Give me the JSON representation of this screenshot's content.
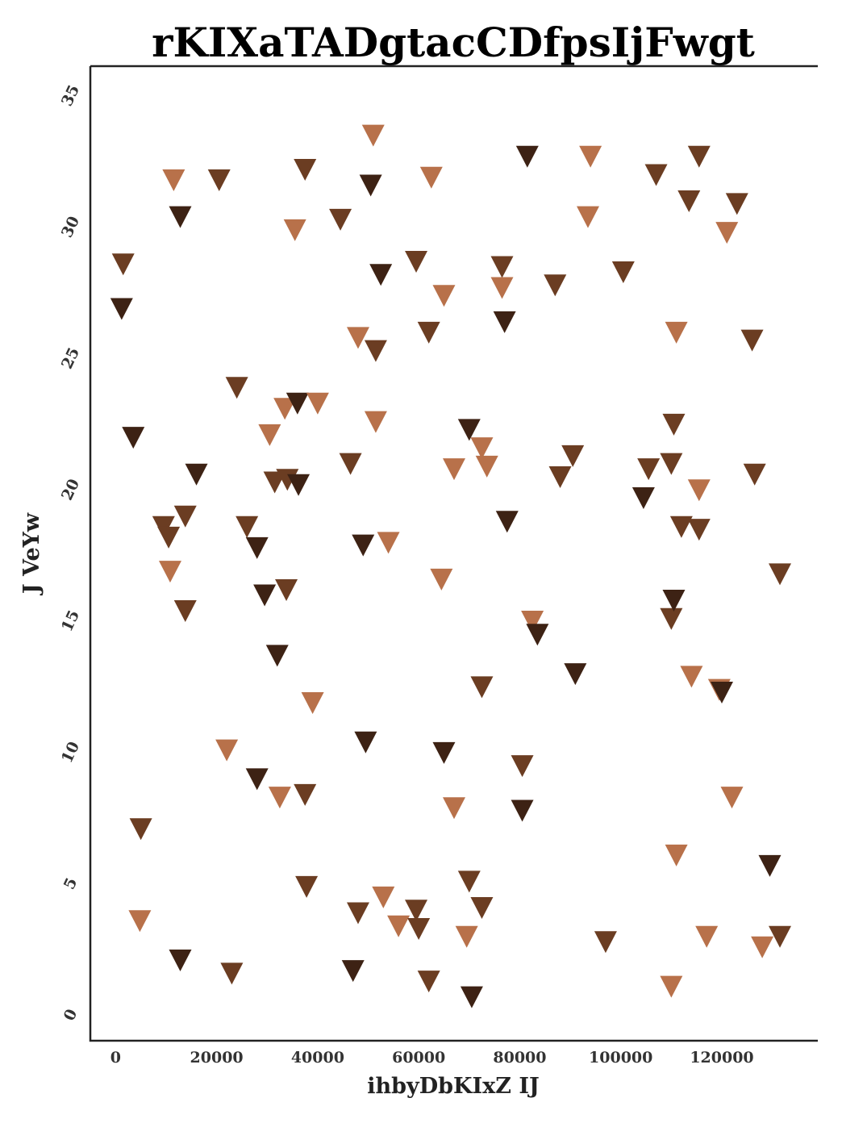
{
  "chart_data": {
    "type": "scatter",
    "title": "rKIXaTADgtacCDfpsIjFwgt",
    "xlabel": "ihbyDbKIxZ IJ",
    "ylabel": "J VeYw",
    "xlim": [
      -5000,
      139000
    ],
    "ylim": [
      -0.9,
      36.2
    ],
    "x_ticks": [
      0,
      20000,
      40000,
      60000,
      80000,
      100000,
      120000
    ],
    "x_tick_labels": [
      "0",
      "20000",
      "40000",
      "60000",
      "80000",
      "100000",
      "120000"
    ],
    "y_ticks": [
      0,
      5,
      10,
      15,
      20,
      25,
      30,
      35
    ],
    "y_tick_labels": [
      "0",
      "5",
      "10",
      "15",
      "20",
      "25",
      "30",
      "35"
    ],
    "grid": false,
    "legend": "none",
    "marker": "triangle-down",
    "colors": {
      "dark": "#3d2214",
      "medium": "#6b3d22",
      "light": "#b8714a"
    },
    "points": [
      {
        "x": 1500,
        "y": 28.7,
        "c": "medium"
      },
      {
        "x": 1200,
        "y": 27.0,
        "c": "dark"
      },
      {
        "x": 3500,
        "y": 22.1,
        "c": "dark"
      },
      {
        "x": 5000,
        "y": 7.2,
        "c": "medium"
      },
      {
        "x": 4800,
        "y": 3.7,
        "c": "light"
      },
      {
        "x": 9500,
        "y": 18.7,
        "c": "medium"
      },
      {
        "x": 10500,
        "y": 18.3,
        "c": "medium"
      },
      {
        "x": 10800,
        "y": 17.0,
        "c": "light"
      },
      {
        "x": 11500,
        "y": 31.9,
        "c": "light"
      },
      {
        "x": 12800,
        "y": 30.5,
        "c": "dark"
      },
      {
        "x": 13800,
        "y": 19.1,
        "c": "medium"
      },
      {
        "x": 13800,
        "y": 15.5,
        "c": "medium"
      },
      {
        "x": 12800,
        "y": 2.2,
        "c": "dark"
      },
      {
        "x": 16000,
        "y": 20.7,
        "c": "dark"
      },
      {
        "x": 20500,
        "y": 31.9,
        "c": "medium"
      },
      {
        "x": 22000,
        "y": 10.2,
        "c": "light"
      },
      {
        "x": 23000,
        "y": 1.7,
        "c": "medium"
      },
      {
        "x": 24000,
        "y": 24.0,
        "c": "medium"
      },
      {
        "x": 26000,
        "y": 18.7,
        "c": "medium"
      },
      {
        "x": 28000,
        "y": 17.9,
        "c": "dark"
      },
      {
        "x": 28000,
        "y": 9.1,
        "c": "dark"
      },
      {
        "x": 29500,
        "y": 16.1,
        "c": "dark"
      },
      {
        "x": 30500,
        "y": 22.2,
        "c": "light"
      },
      {
        "x": 31500,
        "y": 20.4,
        "c": "medium"
      },
      {
        "x": 32000,
        "y": 13.8,
        "c": "dark"
      },
      {
        "x": 32500,
        "y": 8.4,
        "c": "light"
      },
      {
        "x": 33500,
        "y": 23.2,
        "c": "light"
      },
      {
        "x": 33800,
        "y": 16.3,
        "c": "medium"
      },
      {
        "x": 34000,
        "y": 20.5,
        "c": "medium"
      },
      {
        "x": 35500,
        "y": 30.0,
        "c": "light"
      },
      {
        "x": 36000,
        "y": 23.4,
        "c": "dark"
      },
      {
        "x": 36200,
        "y": 20.3,
        "c": "dark"
      },
      {
        "x": 37500,
        "y": 32.3,
        "c": "medium"
      },
      {
        "x": 37500,
        "y": 8.5,
        "c": "medium"
      },
      {
        "x": 37800,
        "y": 5.0,
        "c": "medium"
      },
      {
        "x": 39000,
        "y": 12.0,
        "c": "light"
      },
      {
        "x": 40000,
        "y": 23.4,
        "c": "light"
      },
      {
        "x": 44500,
        "y": 30.4,
        "c": "medium"
      },
      {
        "x": 46500,
        "y": 21.1,
        "c": "medium"
      },
      {
        "x": 47000,
        "y": 1.8,
        "c": "dark"
      },
      {
        "x": 48000,
        "y": 25.9,
        "c": "light"
      },
      {
        "x": 48000,
        "y": 4.0,
        "c": "medium"
      },
      {
        "x": 49000,
        "y": 18.0,
        "c": "dark"
      },
      {
        "x": 49500,
        "y": 10.5,
        "c": "dark"
      },
      {
        "x": 50500,
        "y": 31.7,
        "c": "dark"
      },
      {
        "x": 51000,
        "y": 33.6,
        "c": "light"
      },
      {
        "x": 51500,
        "y": 25.4,
        "c": "medium"
      },
      {
        "x": 51500,
        "y": 22.7,
        "c": "light"
      },
      {
        "x": 52500,
        "y": 28.3,
        "c": "dark"
      },
      {
        "x": 53000,
        "y": 4.6,
        "c": "light"
      },
      {
        "x": 54000,
        "y": 18.1,
        "c": "light"
      },
      {
        "x": 56000,
        "y": 3.5,
        "c": "light"
      },
      {
        "x": 59500,
        "y": 28.8,
        "c": "medium"
      },
      {
        "x": 59500,
        "y": 4.1,
        "c": "medium"
      },
      {
        "x": 60000,
        "y": 3.4,
        "c": "medium"
      },
      {
        "x": 62000,
        "y": 1.4,
        "c": "medium"
      },
      {
        "x": 62000,
        "y": 26.1,
        "c": "medium"
      },
      {
        "x": 62500,
        "y": 32.0,
        "c": "light"
      },
      {
        "x": 65000,
        "y": 27.5,
        "c": "light"
      },
      {
        "x": 65000,
        "y": 10.1,
        "c": "dark"
      },
      {
        "x": 64500,
        "y": 16.7,
        "c": "light"
      },
      {
        "x": 67000,
        "y": 20.9,
        "c": "light"
      },
      {
        "x": 67000,
        "y": 8.0,
        "c": "light"
      },
      {
        "x": 69500,
        "y": 3.1,
        "c": "light"
      },
      {
        "x": 70000,
        "y": 22.4,
        "c": "dark"
      },
      {
        "x": 70000,
        "y": 5.2,
        "c": "medium"
      },
      {
        "x": 70500,
        "y": 0.8,
        "c": "dark"
      },
      {
        "x": 72500,
        "y": 21.7,
        "c": "light"
      },
      {
        "x": 72500,
        "y": 12.6,
        "c": "medium"
      },
      {
        "x": 72500,
        "y": 4.2,
        "c": "medium"
      },
      {
        "x": 73500,
        "y": 21.0,
        "c": "light"
      },
      {
        "x": 76500,
        "y": 28.6,
        "c": "medium"
      },
      {
        "x": 76500,
        "y": 27.8,
        "c": "light"
      },
      {
        "x": 77000,
        "y": 26.5,
        "c": "dark"
      },
      {
        "x": 77500,
        "y": 18.9,
        "c": "dark"
      },
      {
        "x": 80500,
        "y": 9.6,
        "c": "medium"
      },
      {
        "x": 80500,
        "y": 7.9,
        "c": "dark"
      },
      {
        "x": 81500,
        "y": 32.8,
        "c": "dark"
      },
      {
        "x": 82500,
        "y": 15.1,
        "c": "light"
      },
      {
        "x": 83500,
        "y": 14.6,
        "c": "dark"
      },
      {
        "x": 87000,
        "y": 27.9,
        "c": "medium"
      },
      {
        "x": 88000,
        "y": 20.6,
        "c": "medium"
      },
      {
        "x": 90500,
        "y": 21.4,
        "c": "medium"
      },
      {
        "x": 91000,
        "y": 13.1,
        "c": "dark"
      },
      {
        "x": 93500,
        "y": 30.5,
        "c": "light"
      },
      {
        "x": 94000,
        "y": 32.8,
        "c": "light"
      },
      {
        "x": 97000,
        "y": 2.9,
        "c": "medium"
      },
      {
        "x": 100500,
        "y": 28.4,
        "c": "medium"
      },
      {
        "x": 104500,
        "y": 19.8,
        "c": "dark"
      },
      {
        "x": 105500,
        "y": 20.9,
        "c": "medium"
      },
      {
        "x": 107000,
        "y": 32.1,
        "c": "medium"
      },
      {
        "x": 110000,
        "y": 21.1,
        "c": "medium"
      },
      {
        "x": 110000,
        "y": 15.2,
        "c": "medium"
      },
      {
        "x": 110000,
        "y": 1.2,
        "c": "light"
      },
      {
        "x": 110500,
        "y": 22.6,
        "c": "medium"
      },
      {
        "x": 110500,
        "y": 15.9,
        "c": "dark"
      },
      {
        "x": 111000,
        "y": 26.1,
        "c": "light"
      },
      {
        "x": 111000,
        "y": 6.2,
        "c": "light"
      },
      {
        "x": 112000,
        "y": 18.7,
        "c": "medium"
      },
      {
        "x": 113500,
        "y": 31.1,
        "c": "medium"
      },
      {
        "x": 114000,
        "y": 13.0,
        "c": "light"
      },
      {
        "x": 115500,
        "y": 32.8,
        "c": "medium"
      },
      {
        "x": 115500,
        "y": 20.1,
        "c": "light"
      },
      {
        "x": 115500,
        "y": 18.6,
        "c": "medium"
      },
      {
        "x": 117000,
        "y": 3.1,
        "c": "light"
      },
      {
        "x": 119500,
        "y": 12.5,
        "c": "light"
      },
      {
        "x": 120000,
        "y": 12.4,
        "c": "dark"
      },
      {
        "x": 121000,
        "y": 29.9,
        "c": "light"
      },
      {
        "x": 122000,
        "y": 8.4,
        "c": "light"
      },
      {
        "x": 123000,
        "y": 31.0,
        "c": "medium"
      },
      {
        "x": 126000,
        "y": 25.8,
        "c": "medium"
      },
      {
        "x": 126500,
        "y": 20.7,
        "c": "medium"
      },
      {
        "x": 128000,
        "y": 2.7,
        "c": "light"
      },
      {
        "x": 129500,
        "y": 5.8,
        "c": "dark"
      },
      {
        "x": 131500,
        "y": 16.9,
        "c": "medium"
      },
      {
        "x": 131500,
        "y": 3.1,
        "c": "medium"
      }
    ]
  }
}
